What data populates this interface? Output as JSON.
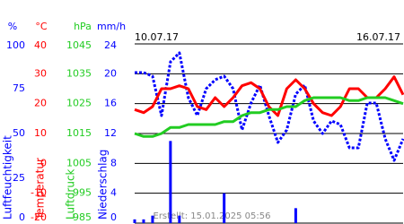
{
  "chart_data": {
    "type": "multi-axis",
    "date_start": "10.07.17",
    "date_end": "16.07.17",
    "footer": "Erstellt: 15.01.2025 05:56",
    "axes": [
      {
        "unit": "%",
        "name": "Luftfeuchtigkeit",
        "color": "#0000ff",
        "type": "dotted-line",
        "ylim": [
          0,
          100
        ],
        "yticks": [
          0,
          25,
          50,
          75,
          100
        ],
        "values": [
          84,
          84,
          82,
          60,
          90,
          95,
          70,
          60,
          75,
          80,
          82,
          75,
          52,
          67,
          77,
          60,
          45,
          52,
          72,
          77,
          57,
          50,
          57,
          55,
          42,
          42,
          67,
          67,
          47,
          35,
          47
        ]
      },
      {
        "unit": "°C",
        "name": "Temperatur",
        "color": "#ff0000",
        "type": "line",
        "ylim": [
          -20,
          40
        ],
        "yticks": [
          -20,
          -10,
          0,
          10,
          20,
          30,
          40
        ],
        "values": [
          18,
          17,
          19,
          25,
          25,
          26,
          25,
          19,
          18,
          22,
          19,
          22,
          26,
          27,
          25,
          19,
          16,
          25,
          28,
          25,
          20,
          17,
          16,
          19,
          25,
          25,
          22,
          22,
          25,
          29,
          23
        ]
      },
      {
        "unit": "hPa",
        "name": "Luftdruck",
        "color": "#22cc22",
        "type": "line",
        "ylim": [
          985,
          1045
        ],
        "yticks": [
          985,
          995,
          1005,
          1015,
          1025,
          1035,
          1045
        ],
        "values": [
          1015,
          1014,
          1014,
          1015,
          1017,
          1017,
          1018,
          1018,
          1018,
          1018,
          1019,
          1019,
          1021,
          1022,
          1022,
          1023,
          1023,
          1024,
          1024,
          1026,
          1027,
          1027,
          1027,
          1027,
          1026,
          1026,
          1027,
          1027,
          1027,
          1026,
          1025
        ]
      },
      {
        "unit": "mm/h",
        "name": "Niederschlag",
        "color": "#0000ff",
        "type": "bar",
        "grid": true,
        "ylim": [
          0,
          24
        ],
        "yticks": [
          0,
          4,
          8,
          12,
          16,
          20,
          24
        ],
        "values": [
          0.5,
          0.5,
          1,
          0,
          11,
          1,
          0,
          0,
          0,
          0,
          4,
          0,
          0,
          0,
          0,
          0,
          0,
          0,
          2,
          0,
          0,
          0,
          0,
          0,
          0,
          0,
          0,
          0,
          0,
          0,
          0
        ]
      }
    ]
  }
}
